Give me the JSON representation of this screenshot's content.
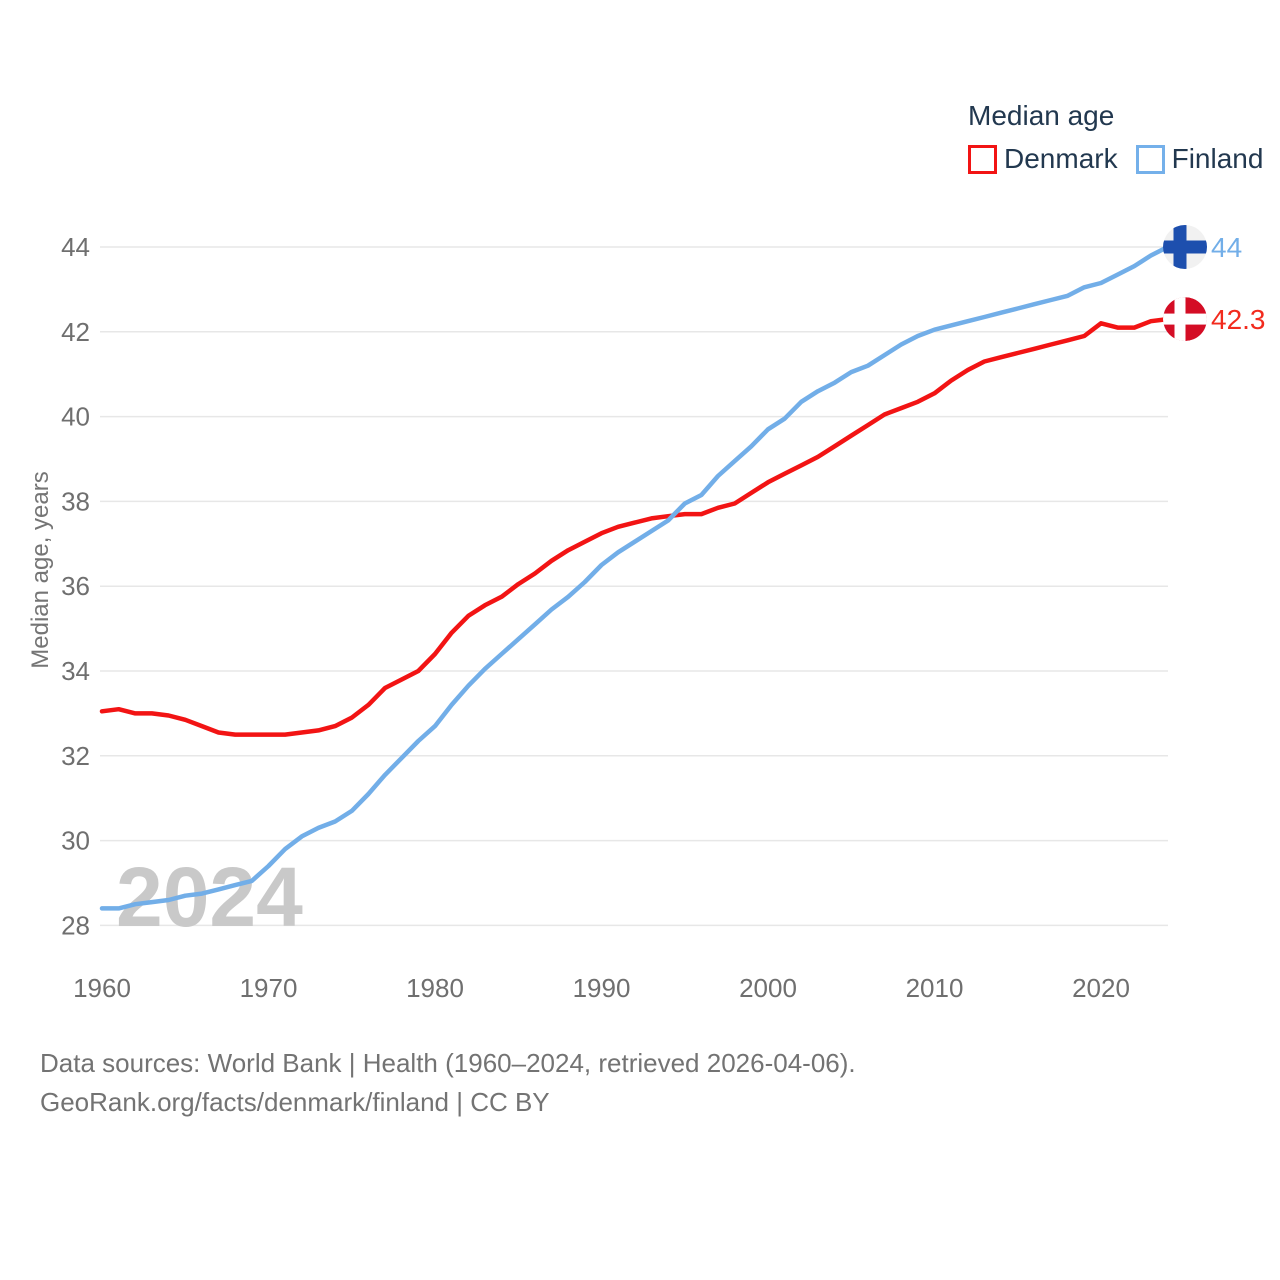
{
  "legend": {
    "title": "Median age",
    "items": [
      {
        "label": "Denmark",
        "color": "#f21414"
      },
      {
        "label": "Finland",
        "color": "#74b0ea"
      }
    ]
  },
  "chart_data": {
    "type": "line",
    "title": "Median age",
    "xlabel": "",
    "ylabel": "Median age, years",
    "ylim": [
      28,
      44
    ],
    "yticks": [
      28,
      30,
      32,
      34,
      36,
      38,
      40,
      42,
      44
    ],
    "xticks": [
      1960,
      1970,
      1980,
      1990,
      2000,
      2010,
      2020
    ],
    "xlim": [
      1960,
      2024
    ],
    "grid": "horizontal-only",
    "legend_position": "top-right",
    "watermark": "2024",
    "x": [
      1960,
      1961,
      1962,
      1963,
      1964,
      1965,
      1966,
      1967,
      1968,
      1969,
      1970,
      1971,
      1972,
      1973,
      1974,
      1975,
      1976,
      1977,
      1978,
      1979,
      1980,
      1981,
      1982,
      1983,
      1984,
      1985,
      1986,
      1987,
      1988,
      1989,
      1990,
      1991,
      1992,
      1993,
      1994,
      1995,
      1996,
      1997,
      1998,
      1999,
      2000,
      2001,
      2002,
      2003,
      2004,
      2005,
      2006,
      2007,
      2008,
      2009,
      2010,
      2011,
      2012,
      2013,
      2014,
      2015,
      2016,
      2017,
      2018,
      2019,
      2020,
      2021,
      2022,
      2023,
      2024
    ],
    "series": [
      {
        "name": "Denmark",
        "line_color": "#f21414",
        "label_color": "#f22b1e",
        "flag": "denmark",
        "flag_circle_color": "#d40d25",
        "flag_cross_color": "#ffffff",
        "end_label": "42.3",
        "end_value": 42.3,
        "values": [
          33.05,
          33.1,
          33.0,
          33.0,
          32.95,
          32.85,
          32.7,
          32.55,
          32.5,
          32.5,
          32.5,
          32.5,
          32.55,
          32.6,
          32.7,
          32.9,
          33.2,
          33.6,
          33.8,
          34.0,
          34.4,
          34.9,
          35.3,
          35.55,
          35.75,
          36.05,
          36.3,
          36.6,
          36.85,
          37.05,
          37.25,
          37.4,
          37.5,
          37.6,
          37.65,
          37.7,
          37.7,
          37.85,
          37.95,
          38.2,
          38.45,
          38.65,
          38.85,
          39.05,
          39.3,
          39.55,
          39.8,
          40.05,
          40.2,
          40.35,
          40.55,
          40.85,
          41.1,
          41.3,
          41.4,
          41.5,
          41.6,
          41.7,
          41.8,
          41.9,
          42.2,
          42.1,
          42.1,
          42.25,
          42.3
        ]
      },
      {
        "name": "Finland",
        "line_color": "#72aee8",
        "label_color": "#72aee8",
        "flag": "finland",
        "flag_circle_color": "#f1f1f1",
        "flag_cross_color": "#1d4fae",
        "end_label": "44",
        "end_value": 44,
        "values": [
          28.4,
          28.4,
          28.5,
          28.55,
          28.6,
          28.7,
          28.75,
          28.85,
          28.95,
          29.05,
          29.4,
          29.8,
          30.1,
          30.3,
          30.45,
          30.7,
          31.1,
          31.55,
          31.95,
          32.35,
          32.7,
          33.2,
          33.65,
          34.05,
          34.4,
          34.75,
          35.1,
          35.45,
          35.75,
          36.1,
          36.5,
          36.8,
          37.05,
          37.3,
          37.55,
          37.95,
          38.15,
          38.6,
          38.95,
          39.3,
          39.7,
          39.95,
          40.35,
          40.6,
          40.8,
          41.05,
          41.2,
          41.45,
          41.7,
          41.9,
          42.05,
          42.15,
          42.25,
          42.35,
          42.45,
          42.55,
          42.65,
          42.75,
          42.85,
          43.05,
          43.15,
          43.35,
          43.55,
          43.8,
          44.0
        ]
      }
    ],
    "colors": {
      "grid": "#e7e7e7",
      "tick_text": "#6f6f6f",
      "axis_title_text": "#757575",
      "watermark_text": "#c9c9c9"
    }
  },
  "footer": {
    "line1": "Data sources: World Bank | Health (1960–2024, retrieved 2026-04-06).",
    "line2": "GeoRank.org/facts/denmark/finland | CC BY"
  }
}
